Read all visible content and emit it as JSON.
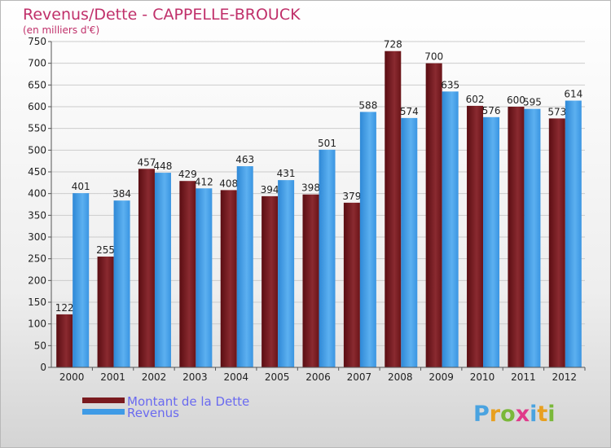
{
  "chart_data": {
    "type": "bar",
    "title": "Revenus/Dette - CAPPELLE-BROUCK",
    "subtitle": "(en milliers d'€)",
    "categories": [
      "2000",
      "2001",
      "2002",
      "2003",
      "2004",
      "2005",
      "2006",
      "2007",
      "2008",
      "2009",
      "2010",
      "2011",
      "2012"
    ],
    "series": [
      {
        "name": "Montant de la Dette",
        "color": "#7a1a1f",
        "values": [
          122,
          255,
          457,
          429,
          408,
          394,
          398,
          379,
          728,
          700,
          602,
          600,
          573
        ]
      },
      {
        "name": "Revenus",
        "color": "#3f9be6",
        "values": [
          401,
          384,
          448,
          412,
          463,
          431,
          501,
          588,
          574,
          635,
          576,
          595,
          614
        ]
      }
    ],
    "ylim": [
      0,
      750
    ],
    "yticks": [
      0,
      50,
      100,
      150,
      200,
      250,
      300,
      350,
      400,
      450,
      500,
      550,
      600,
      650,
      700,
      750
    ],
    "grid": true,
    "legend_position": "bottom-left"
  },
  "logo": {
    "text": "Proxiti",
    "letter_colors": [
      "#4aa3e0",
      "#e8a020",
      "#7ab83a",
      "#e03a8a",
      "#4aa3e0",
      "#e8a020",
      "#7ab83a"
    ]
  }
}
